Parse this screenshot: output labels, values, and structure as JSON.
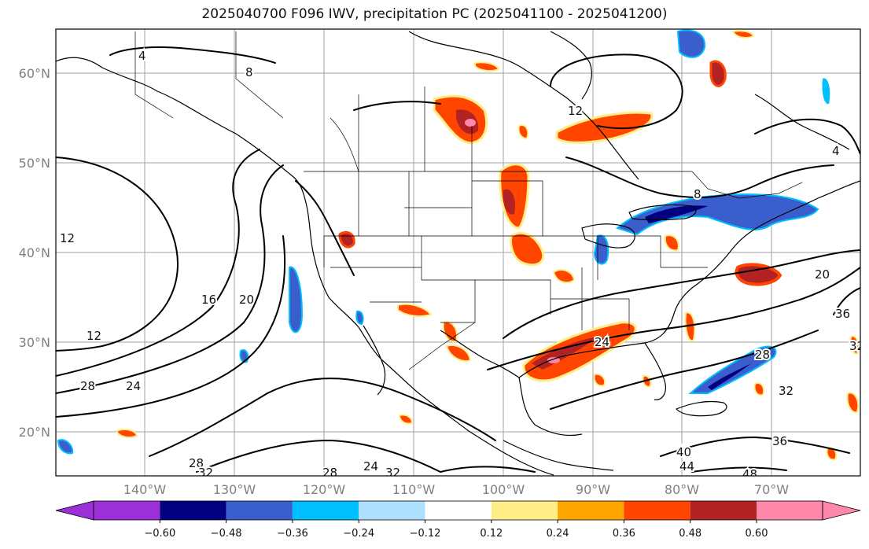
{
  "title": "2025040700 F096 IWV, precipitation PC (2025041100 - 2025041200)",
  "map": {
    "lat_labels": [
      "60°N",
      "50°N",
      "40°N",
      "30°N",
      "20°N"
    ],
    "lon_labels": [
      "140°W",
      "130°W",
      "120°W",
      "110°W",
      "100°W",
      "90°W",
      "80°W",
      "70°W"
    ],
    "iwv_contour_labels": [
      "4",
      "8",
      "12",
      "16",
      "20",
      "24",
      "28",
      "32",
      "36",
      "40",
      "44",
      "48"
    ],
    "grid": true
  },
  "colorbar": {
    "ticks": [
      "−0.60",
      "−0.48",
      "−0.36",
      "−0.24",
      "−0.12",
      "0.12",
      "0.24",
      "0.36",
      "0.48",
      "0.60"
    ],
    "colors": [
      "#9b30d8",
      "#000080",
      "#3a5fcd",
      "#00bfff",
      "#b0e0ff",
      "#ffffff",
      "#ffee88",
      "#ffa500",
      "#ff4500",
      "#b22222",
      "#ff88aa"
    ]
  },
  "precip_colors": {
    "light_pos": "#ffee88",
    "mid_pos": "#ffa500",
    "strong_pos": "#ff4500",
    "very_strong_pos": "#b22222",
    "extreme_pos": "#ff88aa",
    "light_neg": "#00bfff",
    "mid_neg": "#3a5fcd",
    "strong_neg": "#000080"
  }
}
